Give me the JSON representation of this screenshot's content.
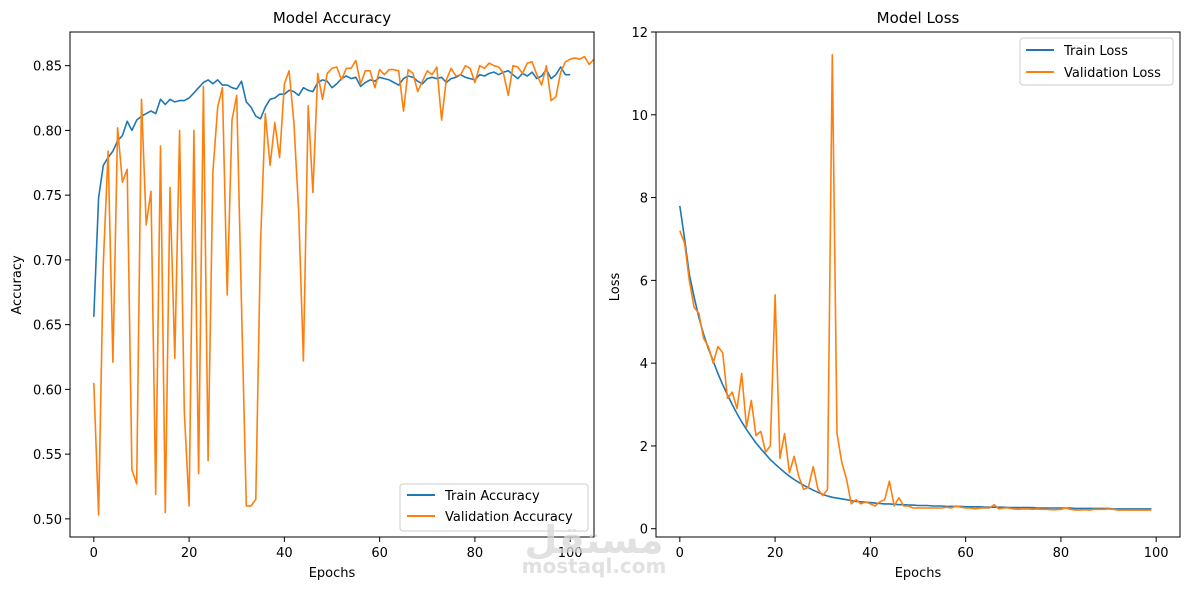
{
  "chart_data": [
    {
      "type": "line",
      "title": "Model Accuracy",
      "xlabel": "Epochs",
      "ylabel": "Accuracy",
      "xlim": [
        -5,
        105
      ],
      "ylim": [
        0.486,
        0.876
      ],
      "xticks": [
        0,
        20,
        40,
        60,
        80,
        100
      ],
      "xtick_labels": [
        "0",
        "20",
        "40",
        "60",
        "80",
        "100"
      ],
      "yticks": [
        0.5,
        0.55,
        0.6,
        0.65,
        0.7,
        0.75,
        0.8,
        0.85
      ],
      "ytick_labels": [
        "0.50",
        "0.55",
        "0.60",
        "0.65",
        "0.70",
        "0.75",
        "0.80",
        "0.85"
      ],
      "legend_position": "lower-right",
      "series": [
        {
          "name": "Train Accuracy",
          "color": "#1f77b4",
          "x_start": 0,
          "values": [
            0.656,
            0.748,
            0.773,
            0.779,
            0.784,
            0.792,
            0.796,
            0.807,
            0.8,
            0.808,
            0.811,
            0.813,
            0.815,
            0.813,
            0.824,
            0.82,
            0.824,
            0.822,
            0.823,
            0.823,
            0.825,
            0.829,
            0.833,
            0.837,
            0.839,
            0.836,
            0.839,
            0.835,
            0.835,
            0.833,
            0.832,
            0.838,
            0.822,
            0.818,
            0.811,
            0.809,
            0.818,
            0.824,
            0.825,
            0.828,
            0.828,
            0.831,
            0.83,
            0.827,
            0.833,
            0.831,
            0.83,
            0.837,
            0.839,
            0.838,
            0.833,
            0.836,
            0.84,
            0.842,
            0.84,
            0.841,
            0.834,
            0.837,
            0.839,
            0.838,
            0.841,
            0.84,
            0.839,
            0.837,
            0.835,
            0.84,
            0.842,
            0.841,
            0.838,
            0.836,
            0.84,
            0.841,
            0.84,
            0.841,
            0.837,
            0.84,
            0.841,
            0.843,
            0.841,
            0.84,
            0.839,
            0.843,
            0.842,
            0.844,
            0.845,
            0.843,
            0.845,
            0.846,
            0.843,
            0.84,
            0.844,
            0.842,
            0.845,
            0.84,
            0.842,
            0.847,
            0.84,
            0.843,
            0.849,
            0.843,
            0.843
          ]
        },
        {
          "name": "Validation Accuracy",
          "color": "#ff7f0e",
          "x_start": 0,
          "values": [
            0.605,
            0.503,
            0.697,
            0.784,
            0.621,
            0.802,
            0.76,
            0.77,
            0.538,
            0.527,
            0.824,
            0.727,
            0.753,
            0.519,
            0.788,
            0.505,
            0.756,
            0.624,
            0.8,
            0.583,
            0.51,
            0.8,
            0.535,
            0.834,
            0.545,
            0.768,
            0.818,
            0.833,
            0.673,
            0.808,
            0.827,
            0.665,
            0.51,
            0.51,
            0.515,
            0.712,
            0.813,
            0.773,
            0.806,
            0.779,
            0.836,
            0.846,
            0.806,
            0.737,
            0.622,
            0.819,
            0.752,
            0.844,
            0.824,
            0.844,
            0.848,
            0.849,
            0.839,
            0.848,
            0.848,
            0.854,
            0.836,
            0.846,
            0.846,
            0.833,
            0.847,
            0.843,
            0.847,
            0.847,
            0.846,
            0.815,
            0.847,
            0.844,
            0.83,
            0.838,
            0.846,
            0.843,
            0.849,
            0.808,
            0.839,
            0.848,
            0.842,
            0.843,
            0.85,
            0.848,
            0.837,
            0.85,
            0.848,
            0.852,
            0.85,
            0.849,
            0.844,
            0.827,
            0.85,
            0.849,
            0.844,
            0.852,
            0.853,
            0.843,
            0.835,
            0.85,
            0.823,
            0.826,
            0.845,
            0.853,
            0.855,
            0.856,
            0.855,
            0.857,
            0.851,
            0.855
          ]
        }
      ]
    },
    {
      "type": "line",
      "title": "Model Loss",
      "xlabel": "Epochs",
      "ylabel": "Loss",
      "xlim": [
        -5,
        105
      ],
      "ylim": [
        -0.2,
        12.0
      ],
      "xticks": [
        0,
        20,
        40,
        60,
        80,
        100
      ],
      "xtick_labels": [
        "0",
        "20",
        "40",
        "60",
        "80",
        "100"
      ],
      "yticks": [
        0,
        2,
        4,
        6,
        8,
        10,
        12
      ],
      "ytick_labels": [
        "0",
        "2",
        "4",
        "6",
        "8",
        "10",
        "12"
      ],
      "legend_position": "top-right",
      "series": [
        {
          "name": "Train Loss",
          "color": "#1f77b4",
          "x_start": 0,
          "values": [
            7.8,
            7.0,
            6.15,
            5.6,
            5.1,
            4.7,
            4.35,
            4.05,
            3.75,
            3.48,
            3.23,
            3.0,
            2.78,
            2.58,
            2.4,
            2.23,
            2.07,
            1.93,
            1.8,
            1.67,
            1.56,
            1.46,
            1.36,
            1.27,
            1.19,
            1.12,
            1.05,
            0.99,
            0.93,
            0.88,
            0.83,
            0.79,
            0.76,
            0.74,
            0.72,
            0.7,
            0.68,
            0.66,
            0.65,
            0.64,
            0.63,
            0.62,
            0.61,
            0.6,
            0.6,
            0.59,
            0.58,
            0.58,
            0.57,
            0.57,
            0.56,
            0.56,
            0.56,
            0.55,
            0.55,
            0.55,
            0.54,
            0.54,
            0.54,
            0.54,
            0.53,
            0.53,
            0.53,
            0.53,
            0.52,
            0.52,
            0.52,
            0.52,
            0.52,
            0.51,
            0.51,
            0.51,
            0.51,
            0.51,
            0.51,
            0.5,
            0.5,
            0.5,
            0.5,
            0.5,
            0.5,
            0.5,
            0.5,
            0.49,
            0.49,
            0.49,
            0.49,
            0.49,
            0.49,
            0.49,
            0.49,
            0.48,
            0.48,
            0.48,
            0.48,
            0.48,
            0.48,
            0.48,
            0.48,
            0.48
          ]
        },
        {
          "name": "Validation Loss",
          "color": "#ff7f0e",
          "x_start": 0,
          "values": [
            7.2,
            6.9,
            6.0,
            5.35,
            5.2,
            4.6,
            4.4,
            4.0,
            4.4,
            4.25,
            3.15,
            3.3,
            2.9,
            3.75,
            2.45,
            3.1,
            2.25,
            2.35,
            1.85,
            2.0,
            5.65,
            1.7,
            2.3,
            1.35,
            1.75,
            1.25,
            0.95,
            1.0,
            1.5,
            0.95,
            0.8,
            0.95,
            11.45,
            2.3,
            1.6,
            1.2,
            0.6,
            0.7,
            0.6,
            0.65,
            0.6,
            0.55,
            0.65,
            0.7,
            1.15,
            0.55,
            0.75,
            0.55,
            0.55,
            0.5,
            0.5,
            0.5,
            0.5,
            0.5,
            0.5,
            0.5,
            0.52,
            0.5,
            0.55,
            0.52,
            0.5,
            0.5,
            0.48,
            0.5,
            0.5,
            0.5,
            0.58,
            0.48,
            0.5,
            0.5,
            0.48,
            0.47,
            0.48,
            0.48,
            0.47,
            0.48,
            0.47,
            0.47,
            0.46,
            0.46,
            0.47,
            0.5,
            0.47,
            0.45,
            0.45,
            0.46,
            0.45,
            0.47,
            0.47,
            0.47,
            0.48,
            0.47,
            0.45,
            0.45,
            0.45,
            0.45,
            0.45,
            0.45,
            0.45,
            0.45
          ]
        }
      ]
    }
  ],
  "watermark": {
    "arabic": "مستقل",
    "latin": "mostaql.com"
  }
}
